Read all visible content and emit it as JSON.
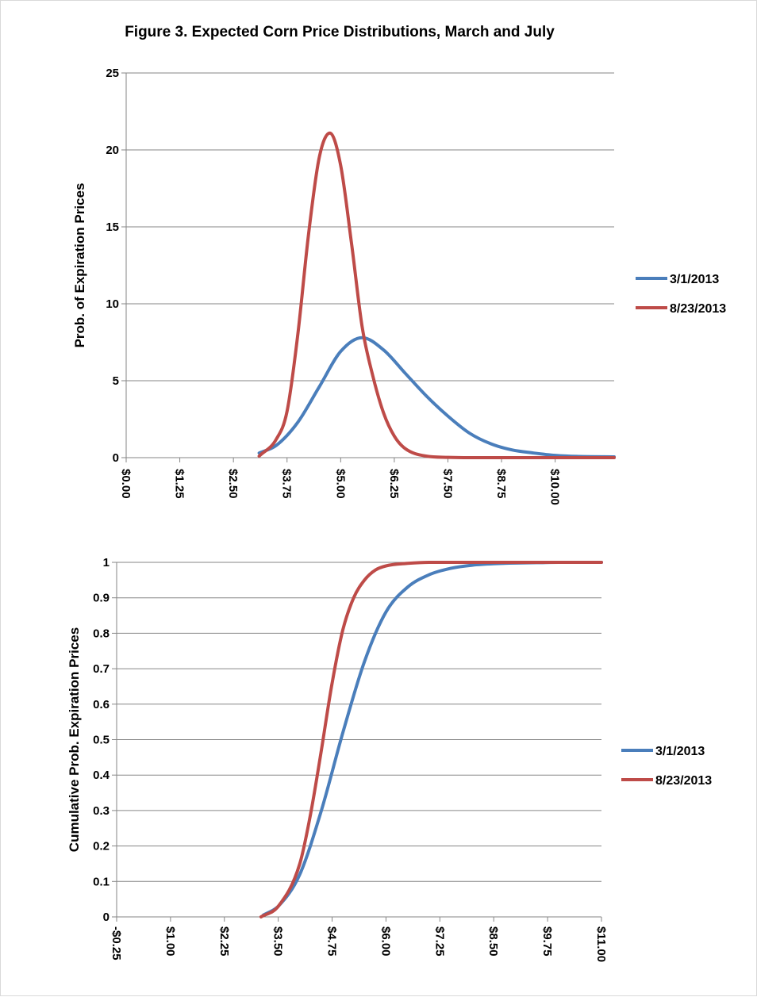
{
  "title": "Figure 3.  Expected Corn Price Distributions, March and July",
  "colors": {
    "series_1": "#4a7ebb",
    "series_2": "#be4b48",
    "grid": "#868686",
    "axis": "#868686"
  },
  "chart_data": [
    {
      "type": "line",
      "title": "",
      "ylabel": "Prob. of Expiration Prices",
      "xlabel": "",
      "x_ticks": [
        "$0.00",
        "$1.25",
        "$2.50",
        "$3.75",
        "$5.00",
        "$6.25",
        "$7.50",
        "$8.75",
        "$10.00"
      ],
      "y_ticks": [
        "0",
        "5",
        "10",
        "15",
        "20",
        "25"
      ],
      "xlim": [
        0,
        11.375
      ],
      "ylim": [
        0,
        25
      ],
      "grid": true,
      "legend_position": "right",
      "series": [
        {
          "name": "3/1/2013",
          "x": [
            3.1,
            3.5,
            4.0,
            4.5,
            5.0,
            5.5,
            6.0,
            6.5,
            7.0,
            7.5,
            8.0,
            8.5,
            9.0,
            9.5,
            10.0,
            10.5,
            11.375
          ],
          "y": [
            0.3,
            0.8,
            2.3,
            4.6,
            6.9,
            7.8,
            7.0,
            5.5,
            4.0,
            2.7,
            1.6,
            0.9,
            0.5,
            0.3,
            0.15,
            0.08,
            0.05
          ]
        },
        {
          "name": "8/23/2013",
          "x": [
            3.1,
            3.5,
            3.75,
            4.0,
            4.25,
            4.5,
            4.75,
            5.0,
            5.25,
            5.5,
            5.75,
            6.0,
            6.25,
            6.5,
            7.0,
            7.5,
            8.0,
            11.375
          ],
          "y": [
            0.1,
            1.2,
            3.0,
            8.0,
            14.5,
            19.5,
            21.1,
            19.0,
            14.0,
            8.5,
            5.3,
            2.9,
            1.4,
            0.6,
            0.1,
            0.02,
            0.0,
            0.0
          ]
        }
      ]
    },
    {
      "type": "line",
      "title": "",
      "ylabel": "Cumulative Prob. Expiration Prices",
      "xlabel": "",
      "x_ticks": [
        "-$0.25",
        "$1.00",
        "$2.25",
        "$3.50",
        "$4.75",
        "$6.00",
        "$7.25",
        "$8.50",
        "$9.75",
        "$11.00"
      ],
      "y_ticks": [
        "0",
        "0.1",
        "0.2",
        "0.3",
        "0.4",
        "0.5",
        "0.6",
        "0.7",
        "0.8",
        "0.9",
        "1"
      ],
      "xlim": [
        -0.25,
        11.0
      ],
      "ylim": [
        0,
        1
      ],
      "grid": true,
      "legend_position": "right",
      "series": [
        {
          "name": "3/1/2013",
          "x": [
            3.15,
            3.5,
            4.0,
            4.5,
            5.0,
            5.5,
            6.0,
            6.5,
            7.0,
            7.5,
            8.0,
            8.5,
            9.0,
            9.5,
            10.0,
            11.0
          ],
          "y": [
            0.005,
            0.03,
            0.12,
            0.3,
            0.52,
            0.72,
            0.86,
            0.93,
            0.965,
            0.983,
            0.992,
            0.996,
            0.998,
            0.999,
            1.0,
            1.0
          ]
        },
        {
          "name": "8/23/2013",
          "x": [
            3.1,
            3.5,
            4.0,
            4.25,
            4.5,
            4.75,
            5.0,
            5.25,
            5.5,
            5.75,
            6.0,
            6.5,
            7.0,
            7.5,
            8.0,
            11.0
          ],
          "y": [
            0.0,
            0.03,
            0.15,
            0.29,
            0.47,
            0.66,
            0.81,
            0.9,
            0.95,
            0.978,
            0.99,
            0.997,
            1.0,
            1.0,
            1.0,
            1.0
          ]
        }
      ]
    }
  ]
}
